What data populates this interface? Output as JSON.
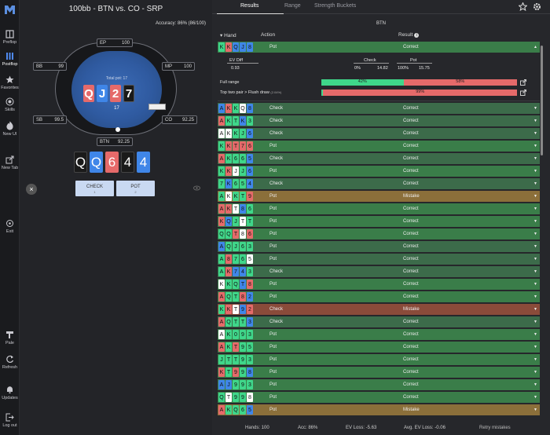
{
  "app": {
    "title": "100bb - BTN vs. CO - SRP",
    "accuracy": "Accuracy: 86% (86/100)"
  },
  "sidebar": {
    "items": [
      {
        "label": "Preflop",
        "icon": "cards-icon"
      },
      {
        "label": "Postflop",
        "icon": "bars-icon"
      },
      {
        "label": "Favorites",
        "icon": "star-icon"
      },
      {
        "label": "Skills",
        "icon": "target-icon"
      },
      {
        "label": "New UI",
        "icon": "flame-icon"
      },
      {
        "label": "New Tab",
        "icon": "external-link-icon"
      },
      {
        "label": "Exit",
        "icon": "exit-icon"
      },
      {
        "label": "Pale",
        "icon": "brush-icon"
      },
      {
        "label": "Refresh",
        "icon": "refresh-icon"
      },
      {
        "label": "Updates",
        "icon": "bell-icon"
      },
      {
        "label": "Log out",
        "icon": "logout-icon"
      }
    ]
  },
  "table": {
    "seats": {
      "ep": {
        "pos": "EP",
        "stack": "100"
      },
      "mp": {
        "pos": "MP",
        "stack": "100"
      },
      "bb": {
        "pos": "BB",
        "stack": "99"
      },
      "sb": {
        "pos": "SB",
        "stack": "99.5"
      },
      "co": {
        "pos": "CO",
        "stack": "92.25"
      },
      "btn": {
        "pos": "BTN",
        "stack": "92.25"
      }
    },
    "pot_label": "Total pot: 17",
    "pot_value": "17",
    "board": [
      {
        "rank": "Q",
        "color": "#e56a6a"
      },
      {
        "rank": "J",
        "color": "#3f86e8"
      },
      {
        "rank": "2",
        "color": "#e56a6a"
      },
      {
        "rank": "7",
        "color": "#1a1a1a"
      }
    ],
    "hand": [
      {
        "rank": "Q",
        "color": "#1a1a1a"
      },
      {
        "rank": "Q",
        "color": "#3f86e8"
      },
      {
        "rank": "6",
        "color": "#e56a6a"
      },
      {
        "rank": "4",
        "color": "#1a1a1a"
      },
      {
        "rank": "4",
        "color": "#3f86e8"
      }
    ]
  },
  "actions": {
    "check": "CHECK",
    "check_key": "1",
    "pot": "POT",
    "pot_key": "2"
  },
  "tabs": {
    "results": "Results",
    "range": "Range",
    "strength": "Strength Buckets"
  },
  "role": "BTN",
  "columns": {
    "hand": "Hand",
    "action": "Action",
    "result": "Result"
  },
  "expanded": {
    "ev_diff_label": "EV Diff",
    "ev_diff": "0.93",
    "check_label": "Check",
    "check_pct": "0%",
    "check_ev": "14.82",
    "pot_label": "Pot",
    "pot_pct": "100%",
    "pot_ev": "15.75",
    "full_range_label": "Full range",
    "full_range_green": "42%",
    "full_range_red": "58%",
    "bucket_label": "Top two pair > Flush draw",
    "bucket_sub": "(2.04%)",
    "bucket_red": "99%",
    "full_range_green_frac": 0.42,
    "bucket_green_frac": 0.01
  },
  "rows": [
    {
      "cards": "KKQJ8",
      "cols": [
        "#3fd68a",
        "#e56a6a",
        "#3f86e8",
        "#3f86e8",
        "#3f86e8"
      ],
      "action": "Pot",
      "result": "Correct",
      "kind": "row"
    },
    {
      "cards": "AKKQ8",
      "cols": [
        "#3f86e8",
        "#e56a6a",
        "#3fd68a",
        "#ffffff",
        "#3f86e8"
      ],
      "action": "Check",
      "result": "Correct",
      "kind": "alt"
    },
    {
      "cards": "AKTK3",
      "cols": [
        "#e56a6a",
        "#3fd68a",
        "#3fd68a",
        "#3f86e8",
        "#3fd68a"
      ],
      "action": "Check",
      "result": "Correct",
      "kind": "alt"
    },
    {
      "cards": "AKKJ6",
      "cols": [
        "#ffffff",
        "#ffffff",
        "#3fd68a",
        "#3fd68a",
        "#3f86e8"
      ],
      "action": "Check",
      "result": "Correct",
      "kind": "alt"
    },
    {
      "cards": "KKT76",
      "cols": [
        "#3fd68a",
        "#e56a6a",
        "#e56a6a",
        "#e56a6a",
        "#e56a6a"
      ],
      "action": "Pot",
      "result": "Correct",
      "kind": "row"
    },
    {
      "cards": "AK665",
      "cols": [
        "#e56a6a",
        "#3fd68a",
        "#3fd68a",
        "#3fd68a",
        "#3f86e8"
      ],
      "action": "Check",
      "result": "Correct",
      "kind": "alt"
    },
    {
      "cards": "KKJJ6",
      "cols": [
        "#3fd68a",
        "#e56a6a",
        "#ffffff",
        "#3fd68a",
        "#3f86e8"
      ],
      "action": "Pot",
      "result": "Correct",
      "kind": "row"
    },
    {
      "cards": "7K654",
      "cols": [
        "#3fd68a",
        "#3f86e8",
        "#3fd68a",
        "#3fd68a",
        "#3f86e8"
      ],
      "action": "Check",
      "result": "Correct",
      "kind": "alt"
    },
    {
      "cards": "AKKT9",
      "cols": [
        "#3fd68a",
        "#ffffff",
        "#3fd68a",
        "#3fd68a",
        "#e56a6a"
      ],
      "action": "Pot",
      "result": "Mistake",
      "kind": "mistake"
    },
    {
      "cards": "AKT86",
      "cols": [
        "#e56a6a",
        "#e56a6a",
        "#ffffff",
        "#3f86e8",
        "#3fd68a"
      ],
      "action": "Pot",
      "result": "Correct",
      "kind": "row"
    },
    {
      "cards": "KQJTT",
      "cols": [
        "#e56a6a",
        "#3f86e8",
        "#3fd68a",
        "#ffffff",
        "#3fd68a"
      ],
      "action": "Pot",
      "result": "Correct",
      "kind": "row"
    },
    {
      "cards": "QQT86",
      "cols": [
        "#3fd68a",
        "#3fd68a",
        "#e56a6a",
        "#ffffff",
        "#e56a6a"
      ],
      "action": "Pot",
      "result": "Correct",
      "kind": "row"
    },
    {
      "cards": "AQJ63",
      "cols": [
        "#3f86e8",
        "#3fd68a",
        "#3fd68a",
        "#3fd68a",
        "#3fd68a"
      ],
      "action": "Pot",
      "result": "Correct",
      "kind": "alt"
    },
    {
      "cards": "A8765",
      "cols": [
        "#3fd68a",
        "#e56a6a",
        "#3fd68a",
        "#3fd68a",
        "#ffffff"
      ],
      "action": "Pot",
      "result": "Correct",
      "kind": "alt"
    },
    {
      "cards": "AK743",
      "cols": [
        "#3fd68a",
        "#e56a6a",
        "#3f86e8",
        "#3f86e8",
        "#3fd68a"
      ],
      "action": "Check",
      "result": "Correct",
      "kind": "alt"
    },
    {
      "cards": "KKQT8",
      "cols": [
        "#ffffff",
        "#3fd68a",
        "#3fd68a",
        "#3f86e8",
        "#e56a6a"
      ],
      "action": "Pot",
      "result": "Correct",
      "kind": "row"
    },
    {
      "cards": "AQT82",
      "cols": [
        "#e56a6a",
        "#3fd68a",
        "#3fd68a",
        "#e56a6a",
        "#3f86e8"
      ],
      "action": "Pot",
      "result": "Correct",
      "kind": "row"
    },
    {
      "cards": "KKT92",
      "cols": [
        "#3fd68a",
        "#e56a6a",
        "#ffffff",
        "#3f86e8",
        "#e56a6a"
      ],
      "action": "Check",
      "result": "Mistake",
      "kind": "mistake2"
    },
    {
      "cards": "AQTT3",
      "cols": [
        "#e56a6a",
        "#3fd68a",
        "#3fd68a",
        "#3fd68a",
        "#3f86e8"
      ],
      "action": "Check",
      "result": "Correct",
      "kind": "alt"
    },
    {
      "cards": "AK093",
      "cols": [
        "#ffffff",
        "#3fd68a",
        "#3fd68a",
        "#3fd68a",
        "#3fd68a"
      ],
      "action": "Pot",
      "result": "Correct",
      "kind": "row"
    },
    {
      "cards": "AKT95",
      "cols": [
        "#e56a6a",
        "#3fd68a",
        "#e56a6a",
        "#3fd68a",
        "#3fd68a"
      ],
      "action": "Pot",
      "result": "Correct",
      "kind": "row"
    },
    {
      "cards": "JTT93",
      "cols": [
        "#3fd68a",
        "#3fd68a",
        "#3fd68a",
        "#3fd68a",
        "#3fd68a"
      ],
      "action": "Pot",
      "result": "Correct",
      "kind": "row"
    },
    {
      "cards": "KT998",
      "cols": [
        "#e56a6a",
        "#3fd68a",
        "#e56a6a",
        "#3fd68a",
        "#3f86e8"
      ],
      "action": "Pot",
      "result": "Correct",
      "kind": "row"
    },
    {
      "cards": "AJ993",
      "cols": [
        "#3f86e8",
        "#3f86e8",
        "#3fd68a",
        "#3fd68a",
        "#3fd68a"
      ],
      "action": "Pot",
      "result": "Correct",
      "kind": "row"
    },
    {
      "cards": "QT998",
      "cols": [
        "#3fd68a",
        "#ffffff",
        "#3fd68a",
        "#3fd68a",
        "#ffffff"
      ],
      "action": "Pot",
      "result": "Correct",
      "kind": "row"
    },
    {
      "cards": "AKQ65",
      "cols": [
        "#e56a6a",
        "#3fd68a",
        "#3fd68a",
        "#3fd68a",
        "#3f86e8"
      ],
      "action": "Pot",
      "result": "Mistake",
      "kind": "mistake"
    }
  ],
  "footer": {
    "hands": "Hands: 100",
    "acc": "Acc: 86%",
    "ev_loss": "EV Loss: -5.63",
    "avg_ev_loss": "Avg. EV Loss: -0.06",
    "retry": "Retry mistakes"
  }
}
